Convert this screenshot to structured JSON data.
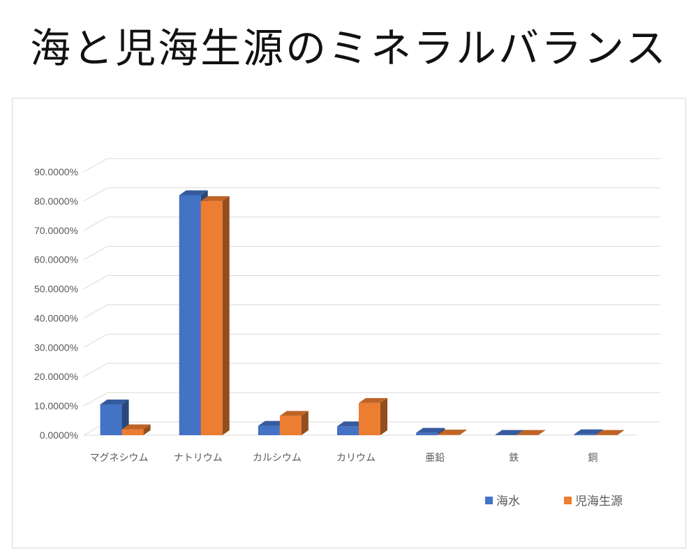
{
  "title": "海と児海生源のミネラルバランス",
  "chart_data": {
    "type": "bar",
    "categories": [
      "マグネシウム",
      "ナトリウム",
      "カルシウム",
      "カリウム",
      "亜鉛",
      "鉄",
      "銅"
    ],
    "series": [
      {
        "name": "海水",
        "values": [
          10.5,
          82.0,
          3.2,
          3.0,
          0.8,
          0.1,
          0.3
        ],
        "color": "#4472C4"
      },
      {
        "name": "児海生源",
        "values": [
          2.0,
          80.0,
          6.6,
          11.0,
          0.2,
          0.1,
          0.1
        ],
        "color": "#ED7D31"
      }
    ],
    "ylim": [
      0,
      90
    ],
    "yticks": [
      "0.0000%",
      "10.0000%",
      "20.0000%",
      "30.0000%",
      "40.0000%",
      "50.0000%",
      "60.0000%",
      "70.0000%",
      "80.0000%",
      "90.0000%"
    ],
    "grid": true,
    "legend_position": "bottom-right",
    "style": "3d-clustered-column"
  }
}
